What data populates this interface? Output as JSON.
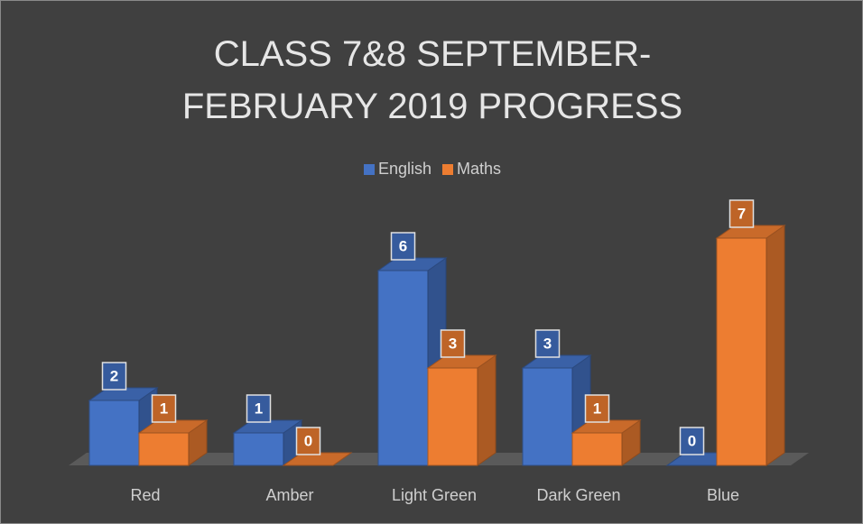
{
  "chart_data": {
    "type": "bar3d",
    "title": "CLASS 7&8 SEPTEMBER- FEBRUARY 2019 PROGRESS",
    "categories": [
      "Red",
      "Amber",
      "Light Green",
      "Dark Green",
      "Blue"
    ],
    "series": [
      {
        "name": "English",
        "color": "#4472c4",
        "values": [
          2,
          1,
          6,
          3,
          0
        ]
      },
      {
        "name": "Maths",
        "color": "#ed7d31",
        "values": [
          1,
          0,
          3,
          1,
          7
        ]
      }
    ],
    "legend": "top"
  }
}
